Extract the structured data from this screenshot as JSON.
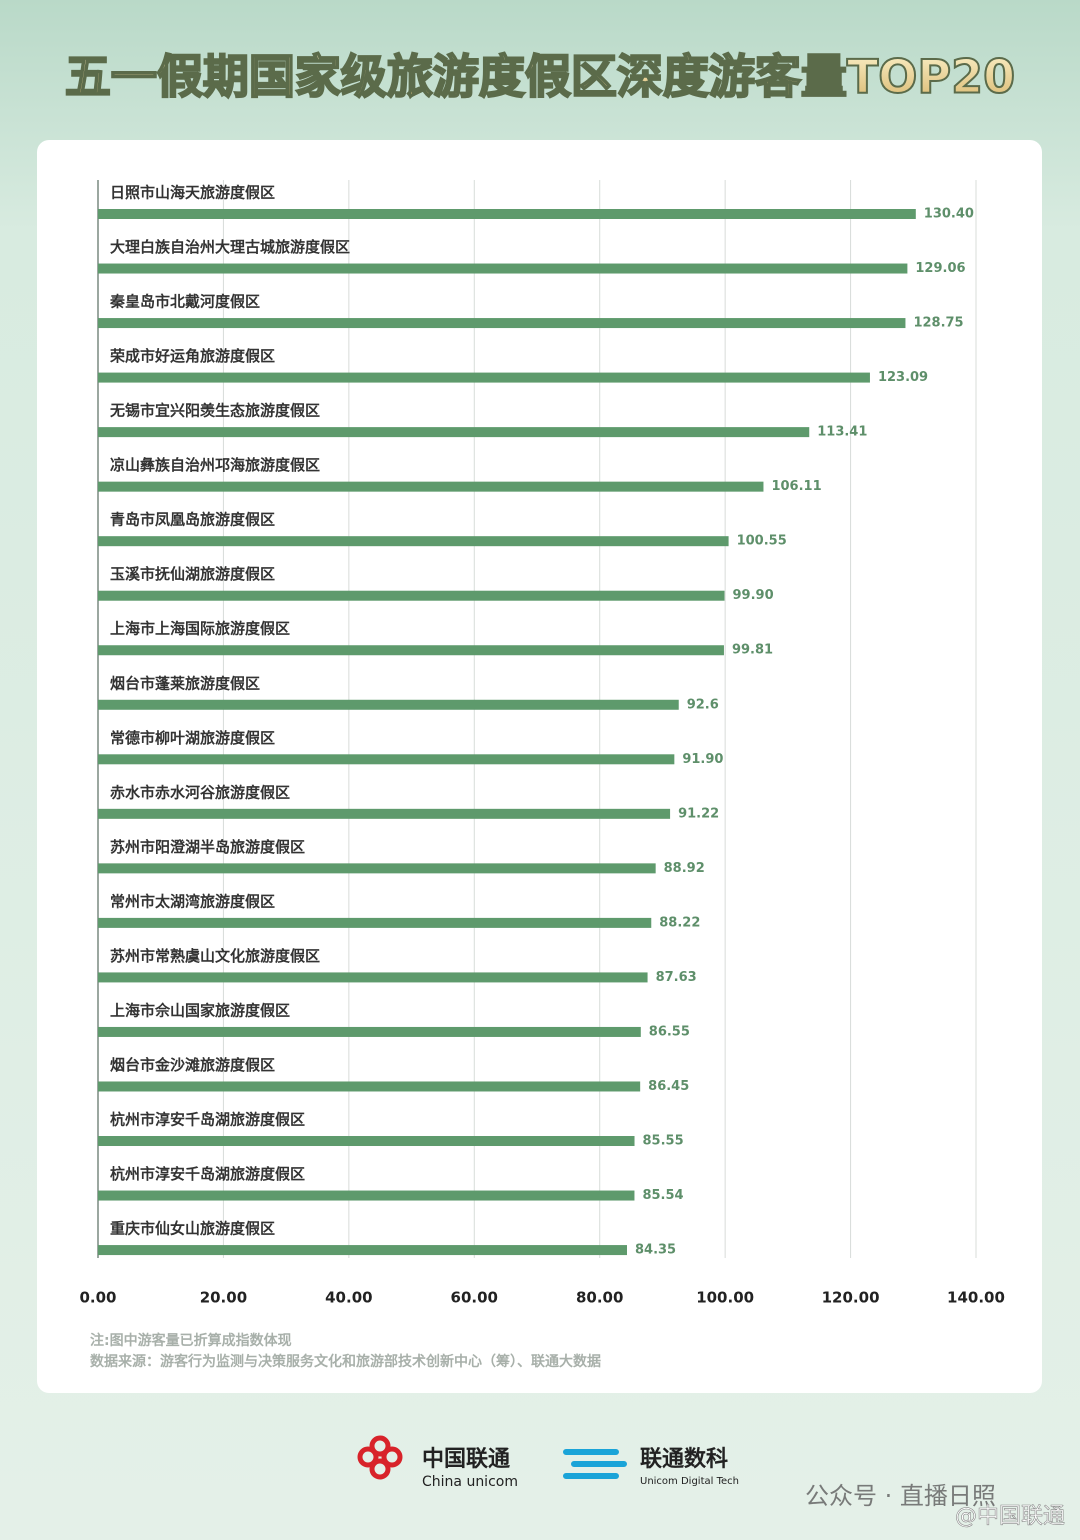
{
  "chart_data": {
    "type": "bar",
    "orientation": "horizontal",
    "title": "五一假期国家级旅游度假区深度游客量TOP20",
    "categories": [
      "日照市山海天旅游度假区",
      "大理白族自治州大理古城旅游度假区",
      "秦皇岛市北戴河度假区",
      "荣成市好运角旅游度假区",
      "无锡市宜兴阳羡生态旅游度假区",
      "凉山彝族自治州邛海旅游度假区",
      "青岛市凤凰岛旅游度假区",
      "玉溪市抚仙湖旅游度假区",
      "上海市上海国际旅游度假区",
      "烟台市蓬莱旅游度假区",
      "常德市柳叶湖旅游度假区",
      "赤水市赤水河谷旅游度假区",
      "苏州市阳澄湖半岛旅游度假区",
      "常州市太湖湾旅游度假区",
      "苏州市常熟虞山文化旅游度假区",
      "上海市佘山国家旅游度假区",
      "烟台市金沙滩旅游度假区",
      "杭州市淳安千岛湖旅游度假区",
      "杭州市淳安千岛湖旅游度假区",
      "重庆市仙女山旅游度假区"
    ],
    "values": [
      130.4,
      129.06,
      128.75,
      123.09,
      113.41,
      106.11,
      100.55,
      99.9,
      99.81,
      92.6,
      91.9,
      91.22,
      88.92,
      88.22,
      87.63,
      86.55,
      86.45,
      85.55,
      85.54,
      84.35
    ],
    "value_labels": [
      "130.40",
      "129.06",
      "128.75",
      "123.09",
      "113.41",
      "106.11",
      "100.55",
      "99.90",
      "99.81",
      "92.6",
      "91.90",
      "91.22",
      "88.92",
      "88.22",
      "87.63",
      "86.55",
      "86.45",
      "85.55",
      "85.54",
      "84.35"
    ],
    "color": "#5e9a6c",
    "xlim": [
      0,
      140
    ],
    "xticks": [
      {
        "value": 0,
        "label": "0.00"
      },
      {
        "value": 20,
        "label": "20.00"
      },
      {
        "value": 40,
        "label": "40.00"
      },
      {
        "value": 60,
        "label": "60.00"
      },
      {
        "value": 80,
        "label": "80.00"
      },
      {
        "value": 100,
        "label": "100.00"
      },
      {
        "value": 120,
        "label": "120.00"
      },
      {
        "value": 140,
        "label": "140.00"
      }
    ],
    "grid": true,
    "notes": [
      "注:图中游客量已折算成指数体现",
      "数据来源：游客行为监测与决策服务文化和旅游部技术创新中心（筹）、联通大数据"
    ]
  },
  "footer": {
    "logo1": "中国联通",
    "logo1_en": "China unicom",
    "logo2": "联通数科",
    "logo2_en": "Unicom Digital Tech",
    "watermark": "公众号 · 直播日照",
    "watermark2": "@中国联通"
  }
}
